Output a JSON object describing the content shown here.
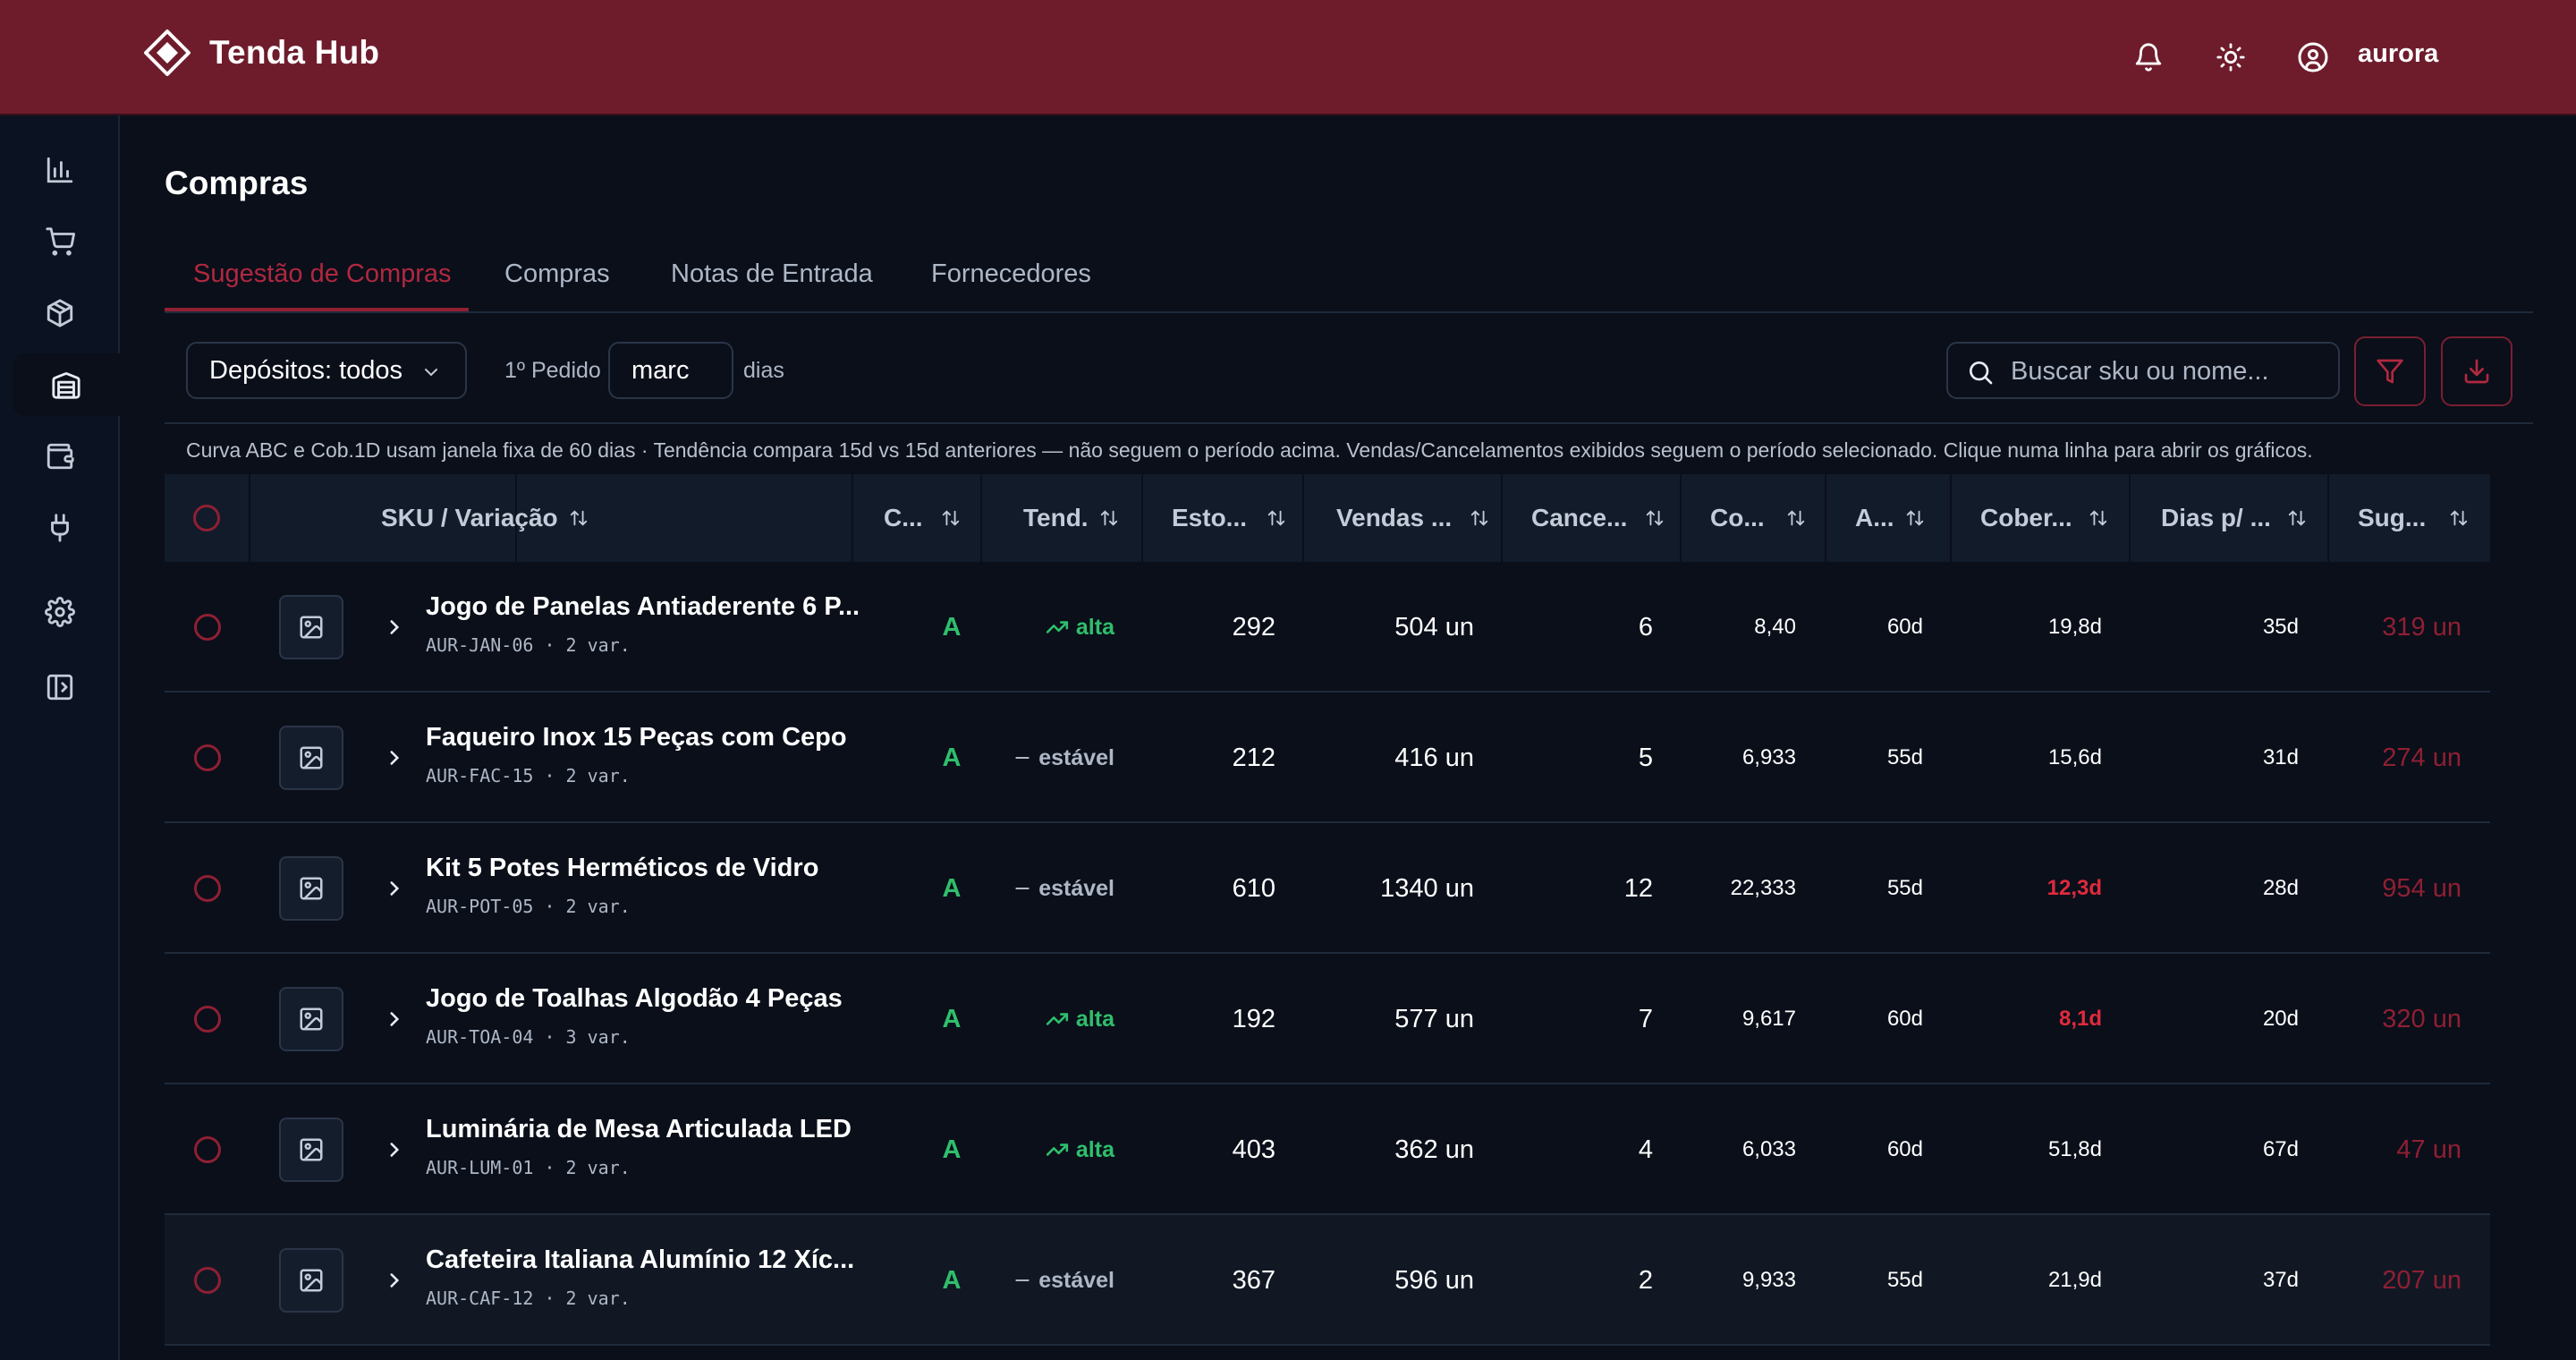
{
  "header": {
    "brand": "Tenda Hub",
    "user": "aurora",
    "icons": [
      "bell-icon",
      "sun-icon",
      "user-circle-icon"
    ]
  },
  "sidebar": {
    "items": [
      {
        "icon": "bar-chart-icon",
        "active": false
      },
      {
        "icon": "cart-icon",
        "active": false
      },
      {
        "icon": "box-icon",
        "active": false
      },
      {
        "icon": "warehouse-icon",
        "active": true
      },
      {
        "icon": "wallet-icon",
        "active": false
      },
      {
        "icon": "plug-icon",
        "active": false
      },
      {
        "icon": "gear-icon",
        "active": false
      },
      {
        "icon": "panel-toggle-icon",
        "active": false
      }
    ]
  },
  "page": {
    "title": "Compras",
    "tabs": [
      {
        "label": "Sugestão de Compras",
        "active": true
      },
      {
        "label": "Compras",
        "active": false
      },
      {
        "label": "Notas de Entrada",
        "active": false
      },
      {
        "label": "Fornecedores",
        "active": false
      }
    ]
  },
  "toolbar": {
    "deposit_select": "Depósitos: todos",
    "first_order_label": "1º Pedido",
    "first_order_value": "marc",
    "days_label": "dias",
    "search_placeholder": "Buscar sku ou nome...",
    "filter_icon": "filter-icon",
    "download_icon": "download-icon"
  },
  "info": "Curva ABC e Cob.1D usam janela fixa de 60 dias · Tendência compara 15d vs 15d anteriores — não seguem o período acima. Vendas/Cancelamentos exibidos seguem o período selecionado. Clique numa linha para abrir os gráficos.",
  "table": {
    "columns": [
      "SKU / Variação",
      "C...",
      "Tend.",
      "Esto...",
      "Vendas ...",
      "Cance...",
      "Co...",
      "A...",
      "Cober...",
      "Dias p/ ...",
      "Sug..."
    ],
    "rows": [
      {
        "name": "Jogo de Panelas Antiaderente 6 P...",
        "sku": "AUR-JAN-06 · 2 var.",
        "curve": "A",
        "trend": "alta",
        "trend_dir": "up",
        "stock": "292",
        "sales": "504 un",
        "cancel": "6",
        "cob1d": "8,40",
        "age": "60d",
        "coverage": "19,8d",
        "coverage_alert": false,
        "days_to": "35d",
        "suggestion": "319 un"
      },
      {
        "name": "Faqueiro Inox 15 Peças com Cepo",
        "sku": "AUR-FAC-15 · 2 var.",
        "curve": "A",
        "trend": "estável",
        "trend_dir": "flat",
        "stock": "212",
        "sales": "416 un",
        "cancel": "5",
        "cob1d": "6,933",
        "age": "55d",
        "coverage": "15,6d",
        "coverage_alert": false,
        "days_to": "31d",
        "suggestion": "274 un"
      },
      {
        "name": "Kit 5 Potes Herméticos de Vidro",
        "sku": "AUR-POT-05 · 2 var.",
        "curve": "A",
        "trend": "estável",
        "trend_dir": "flat",
        "stock": "610",
        "sales": "1340 un",
        "cancel": "12",
        "cob1d": "22,333",
        "age": "55d",
        "coverage": "12,3d",
        "coverage_alert": true,
        "days_to": "28d",
        "suggestion": "954 un"
      },
      {
        "name": "Jogo de Toalhas Algodão 4 Peças",
        "sku": "AUR-TOA-04 · 3 var.",
        "curve": "A",
        "trend": "alta",
        "trend_dir": "up",
        "stock": "192",
        "sales": "577 un",
        "cancel": "7",
        "cob1d": "9,617",
        "age": "60d",
        "coverage": "8,1d",
        "coverage_alert": true,
        "days_to": "20d",
        "suggestion": "320 un"
      },
      {
        "name": "Luminária de Mesa Articulada LED",
        "sku": "AUR-LUM-01 · 2 var.",
        "curve": "A",
        "trend": "alta",
        "trend_dir": "up",
        "stock": "403",
        "sales": "362 un",
        "cancel": "4",
        "cob1d": "6,033",
        "age": "60d",
        "coverage": "51,8d",
        "coverage_alert": false,
        "days_to": "67d",
        "suggestion": "47 un"
      },
      {
        "name": "Cafeteira Italiana Alumínio 12 Xíc...",
        "sku": "AUR-CAF-12 · 2 var.",
        "curve": "A",
        "trend": "estável",
        "trend_dir": "flat",
        "stock": "367",
        "sales": "596 un",
        "cancel": "2",
        "cob1d": "9,933",
        "age": "55d",
        "coverage": "21,9d",
        "coverage_alert": false,
        "days_to": "37d",
        "suggestion": "207 un"
      }
    ]
  },
  "colors": {
    "header_bg": "#6e1c2c",
    "accent": "#8f1f33",
    "success": "#2fbf6c",
    "danger": "#e02a3c",
    "page_bg": "#0a0f1a"
  }
}
